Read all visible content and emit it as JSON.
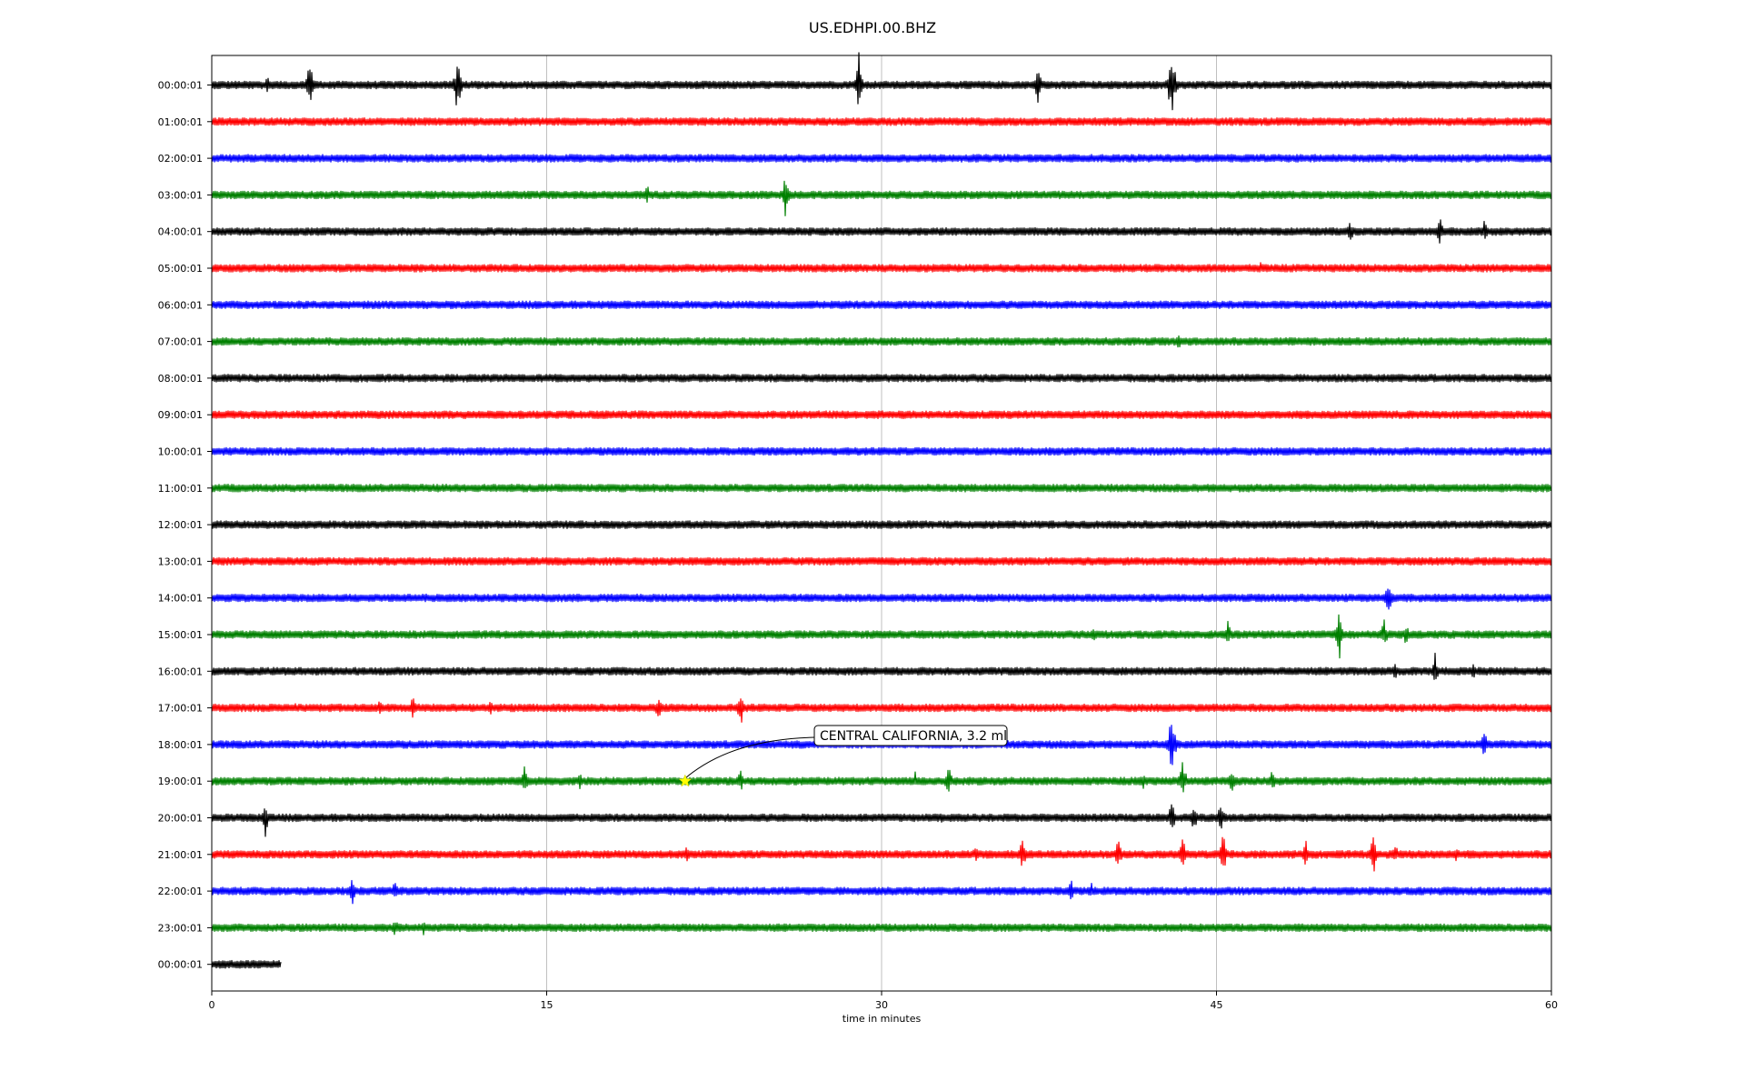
{
  "chart_data": {
    "type": "line",
    "title": "US.EDHPI.00.BHZ",
    "xlabel": "time in minutes",
    "ylabel": "",
    "xlim": [
      0,
      60
    ],
    "x_ticks": [
      0,
      15,
      30,
      45,
      60
    ],
    "x_tick_labels": [
      "0",
      "15",
      "30",
      "45",
      "60"
    ],
    "grid": "vertical",
    "colors": [
      "#000000",
      "#ff0000",
      "#0000ff",
      "#008000"
    ],
    "series": [
      {
        "label": "00:00:01",
        "color": "#000000",
        "end_minute": 60,
        "events": [
          [
            2.5,
            12
          ],
          [
            4.4,
            35
          ],
          [
            11,
            38
          ],
          [
            29,
            45
          ],
          [
            37,
            25
          ],
          [
            43,
            55
          ]
        ]
      },
      {
        "label": "01:00:01",
        "color": "#ff0000",
        "end_minute": 60,
        "events": []
      },
      {
        "label": "02:00:01",
        "color": "#0000ff",
        "end_minute": 60,
        "events": []
      },
      {
        "label": "03:00:01",
        "color": "#008000",
        "end_minute": 60,
        "events": [
          [
            19.5,
            14
          ],
          [
            25.7,
            28
          ]
        ]
      },
      {
        "label": "04:00:01",
        "color": "#000000",
        "end_minute": 60,
        "events": [
          [
            51,
            14
          ],
          [
            55,
            18
          ],
          [
            57,
            14
          ]
        ]
      },
      {
        "label": "05:00:01",
        "color": "#ff0000",
        "end_minute": 60,
        "events": [
          [
            47,
            8
          ]
        ]
      },
      {
        "label": "06:00:01",
        "color": "#0000ff",
        "end_minute": 60,
        "events": [
          [
            36.5,
            8
          ]
        ]
      },
      {
        "label": "07:00:01",
        "color": "#008000",
        "end_minute": 60,
        "events": [
          [
            43.3,
            10
          ]
        ]
      },
      {
        "label": "08:00:01",
        "color": "#000000",
        "end_minute": 60,
        "events": []
      },
      {
        "label": "09:00:01",
        "color": "#ff0000",
        "end_minute": 60,
        "events": []
      },
      {
        "label": "10:00:01",
        "color": "#0000ff",
        "end_minute": 60,
        "events": []
      },
      {
        "label": "11:00:01",
        "color": "#008000",
        "end_minute": 60,
        "events": [
          [
            22,
            8
          ]
        ]
      },
      {
        "label": "12:00:01",
        "color": "#000000",
        "end_minute": 60,
        "events": []
      },
      {
        "label": "13:00:01",
        "color": "#ff0000",
        "end_minute": 60,
        "events": []
      },
      {
        "label": "14:00:01",
        "color": "#0000ff",
        "end_minute": 60,
        "events": [
          [
            52.7,
            25
          ]
        ]
      },
      {
        "label": "15:00:01",
        "color": "#008000",
        "end_minute": 60,
        "events": [
          [
            39.5,
            14
          ],
          [
            45.5,
            18
          ],
          [
            50.5,
            30
          ],
          [
            52.5,
            20
          ],
          [
            53.5,
            14
          ]
        ]
      },
      {
        "label": "16:00:01",
        "color": "#000000",
        "end_minute": 60,
        "events": [
          [
            53,
            10
          ],
          [
            54.8,
            22
          ],
          [
            56.5,
            10
          ]
        ]
      },
      {
        "label": "17:00:01",
        "color": "#ff0000",
        "end_minute": 60,
        "events": [
          [
            3.7,
            8
          ],
          [
            7.5,
            12
          ],
          [
            9,
            14
          ],
          [
            12.5,
            12
          ],
          [
            20,
            16
          ],
          [
            23.7,
            22
          ]
        ]
      },
      {
        "label": "18:00:01",
        "color": "#0000ff",
        "end_minute": 60,
        "events": [
          [
            43,
            48
          ],
          [
            57,
            18
          ]
        ]
      },
      {
        "label": "19:00:01",
        "color": "#008000",
        "end_minute": 60,
        "events": [
          [
            12.5,
            10
          ],
          [
            14,
            18
          ],
          [
            16.5,
            10
          ],
          [
            23.7,
            16
          ],
          [
            28.9,
            8
          ],
          [
            31.5,
            12
          ],
          [
            33,
            20
          ],
          [
            41.7,
            14
          ],
          [
            43.5,
            28
          ],
          [
            45.7,
            16
          ],
          [
            47.5,
            14
          ]
        ]
      },
      {
        "label": "20:00:01",
        "color": "#000000",
        "end_minute": 60,
        "events": [
          [
            2.4,
            28
          ],
          [
            32.7,
            8
          ],
          [
            43,
            22
          ],
          [
            44,
            20
          ],
          [
            45.2,
            22
          ]
        ]
      },
      {
        "label": "21:00:01",
        "color": "#ff0000",
        "end_minute": 60,
        "events": [
          [
            21.3,
            14
          ],
          [
            34.2,
            12
          ],
          [
            36.3,
            24
          ],
          [
            40.6,
            22
          ],
          [
            43.5,
            22
          ],
          [
            45.3,
            28
          ],
          [
            49,
            16
          ],
          [
            52,
            32
          ],
          [
            53,
            14
          ],
          [
            55.7,
            10
          ]
        ]
      },
      {
        "label": "22:00:01",
        "color": "#0000ff",
        "end_minute": 60,
        "events": [
          [
            6.3,
            18
          ],
          [
            8.2,
            14
          ],
          [
            38.5,
            14
          ],
          [
            39.4,
            10
          ]
        ]
      },
      {
        "label": "23:00:01",
        "color": "#008000",
        "end_minute": 60,
        "events": [
          [
            8.2,
            14
          ],
          [
            9.5,
            10
          ]
        ]
      },
      {
        "label": "00:00:01",
        "color": "#000000",
        "end_minute": 3.1,
        "events": []
      }
    ],
    "event_marker": {
      "text": "CENTRAL CALIFORNIA, 3.2 ml",
      "trace_label": "19:00:01",
      "minute": 21.2,
      "marker": "star",
      "marker_color": "#ffff00"
    }
  }
}
